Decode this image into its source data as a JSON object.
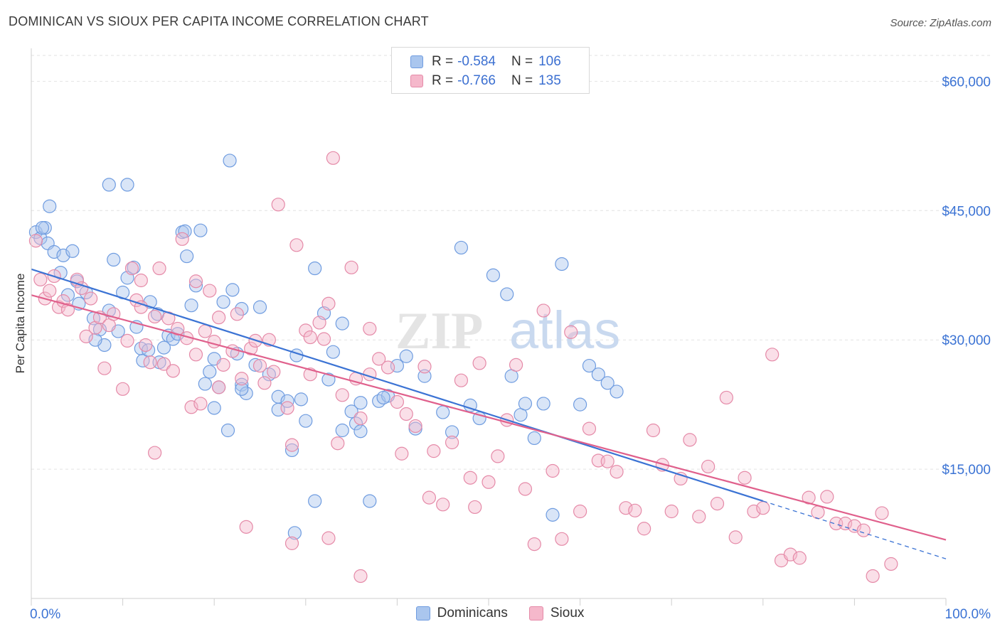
{
  "title": "DOMINICAN VS SIOUX PER CAPITA INCOME CORRELATION CHART",
  "source": "Source: ZipAtlas.com",
  "legend": {
    "rows": [
      {
        "r_label": "R =",
        "r_value": "-0.584",
        "n_label": "N =",
        "n_value": "106",
        "fill": "#aac6ee",
        "stroke": "#6f9ce0"
      },
      {
        "r_label": "R =",
        "r_value": "-0.766",
        "n_label": "N =",
        "n_value": "135",
        "fill": "#f5b8cb",
        "stroke": "#e58aa8"
      }
    ]
  },
  "bottom_legend": [
    "Dominicans",
    "Sioux"
  ],
  "chart_data": {
    "type": "scatter",
    "ylabel": "Per Capita Income",
    "xlim": [
      0,
      100
    ],
    "ylim": [
      0,
      63000
    ],
    "x_tick_labels": [
      "0.0%",
      "100.0%"
    ],
    "y_ticks": [
      15000,
      30000,
      45000,
      60000
    ],
    "y_tick_labels": [
      "$15,000",
      "$30,000",
      "$45,000",
      "$60,000"
    ],
    "grid": true,
    "watermark": "ZIPatlas",
    "series": [
      {
        "name": "Dominicans",
        "color_fill": "#aac6ee",
        "color_stroke": "#6f9ce0",
        "line_color": "#3b73d4",
        "trend": {
          "x0": 0,
          "y0": 38200,
          "x1": 80,
          "y1": 11300,
          "dash_to_x": 100,
          "dash_to_y": 4600
        },
        "points": [
          [
            0.5,
            42500
          ],
          [
            1,
            41800
          ],
          [
            1.5,
            43000
          ],
          [
            2,
            45500
          ],
          [
            1.8,
            41200
          ],
          [
            2.5,
            40200
          ],
          [
            3.2,
            37800
          ],
          [
            3.5,
            39800
          ],
          [
            4.5,
            40300
          ],
          [
            5,
            36800
          ],
          [
            6,
            35500
          ],
          [
            5.2,
            34200
          ],
          [
            6.8,
            32500
          ],
          [
            7.5,
            31200
          ],
          [
            8,
            29400
          ],
          [
            8.5,
            33400
          ],
          [
            9,
            39300
          ],
          [
            10,
            35500
          ],
          [
            10.5,
            37200
          ],
          [
            11.2,
            38400
          ],
          [
            11.5,
            31500
          ],
          [
            12,
            29000
          ],
          [
            12.2,
            27600
          ],
          [
            13,
            34400
          ],
          [
            13.8,
            33000
          ],
          [
            14,
            27400
          ],
          [
            15,
            30500
          ],
          [
            15.5,
            30100
          ],
          [
            16.5,
            42500
          ],
          [
            16.8,
            42600
          ],
          [
            17,
            39700
          ],
          [
            17.5,
            34000
          ],
          [
            18,
            36300
          ],
          [
            18.5,
            42700
          ],
          [
            19,
            24900
          ],
          [
            19.5,
            26300
          ],
          [
            20,
            27800
          ],
          [
            20.5,
            24500
          ],
          [
            21,
            34400
          ],
          [
            22,
            35800
          ],
          [
            22.5,
            28400
          ],
          [
            23,
            24800
          ],
          [
            23.5,
            23800
          ],
          [
            24.5,
            27100
          ],
          [
            25,
            33800
          ],
          [
            26,
            26000
          ],
          [
            27,
            23400
          ],
          [
            28,
            22900
          ],
          [
            29,
            28200
          ],
          [
            29.5,
            23100
          ],
          [
            30,
            20600
          ],
          [
            31,
            38300
          ],
          [
            32,
            33100
          ],
          [
            32.5,
            25400
          ],
          [
            33,
            28600
          ],
          [
            34,
            31900
          ],
          [
            35,
            21700
          ],
          [
            35.5,
            20300
          ],
          [
            36,
            19400
          ],
          [
            38,
            22900
          ],
          [
            39,
            23500
          ],
          [
            40,
            27000
          ],
          [
            41,
            28100
          ],
          [
            42,
            19700
          ],
          [
            43,
            25800
          ],
          [
            45,
            21600
          ],
          [
            46,
            19300
          ],
          [
            47,
            40700
          ],
          [
            48,
            22400
          ],
          [
            49,
            20900
          ],
          [
            50.5,
            37500
          ],
          [
            52,
            35300
          ],
          [
            52.5,
            25800
          ],
          [
            53.5,
            21300
          ],
          [
            54,
            22600
          ],
          [
            55,
            18600
          ],
          [
            56,
            22600
          ],
          [
            57,
            9700
          ],
          [
            58,
            38800
          ],
          [
            60,
            22500
          ],
          [
            61,
            27000
          ],
          [
            62,
            26000
          ],
          [
            63,
            25000
          ],
          [
            64,
            24000
          ],
          [
            4,
            35200
          ],
          [
            7,
            30000
          ],
          [
            9.5,
            31000
          ],
          [
            12.8,
            28800
          ],
          [
            14.5,
            29100
          ],
          [
            16,
            30700
          ],
          [
            20,
            22100
          ],
          [
            21.5,
            19500
          ],
          [
            23,
            24300
          ],
          [
            27,
            21900
          ],
          [
            28.5,
            17200
          ],
          [
            28.8,
            7600
          ],
          [
            31,
            11300
          ],
          [
            34,
            19500
          ],
          [
            36,
            22700
          ],
          [
            37,
            11300
          ],
          [
            38.5,
            23300
          ],
          [
            8.5,
            48000
          ],
          [
            10.5,
            48000
          ],
          [
            21.7,
            50800
          ],
          [
            23,
            33600
          ],
          [
            1.2,
            43000
          ]
        ]
      },
      {
        "name": "Sioux",
        "color_fill": "#f5b8cb",
        "color_stroke": "#e58aa8",
        "line_color": "#e0608c",
        "trend": {
          "x0": 0,
          "y0": 35200,
          "x1": 100,
          "y1": 6800
        },
        "points": [
          [
            0.5,
            41500
          ],
          [
            1,
            37000
          ],
          [
            1.5,
            34800
          ],
          [
            2,
            35700
          ],
          [
            2.5,
            37400
          ],
          [
            3,
            33800
          ],
          [
            3.5,
            34500
          ],
          [
            4,
            33500
          ],
          [
            5,
            37000
          ],
          [
            5.5,
            36000
          ],
          [
            6,
            30400
          ],
          [
            6.5,
            34800
          ],
          [
            7,
            31400
          ],
          [
            7.5,
            32600
          ],
          [
            8,
            26700
          ],
          [
            8.5,
            31700
          ],
          [
            9,
            33000
          ],
          [
            10,
            24300
          ],
          [
            10.5,
            29900
          ],
          [
            11,
            38300
          ],
          [
            11.5,
            34600
          ],
          [
            12,
            36900
          ],
          [
            12.5,
            29400
          ],
          [
            13,
            27400
          ],
          [
            13.5,
            32700
          ],
          [
            14,
            38300
          ],
          [
            14.5,
            27200
          ],
          [
            15,
            32500
          ],
          [
            15.5,
            26400
          ],
          [
            16,
            31300
          ],
          [
            16.5,
            41700
          ],
          [
            17,
            30200
          ],
          [
            17.5,
            22200
          ],
          [
            18,
            36800
          ],
          [
            18.5,
            22600
          ],
          [
            19,
            31000
          ],
          [
            19.5,
            35700
          ],
          [
            20,
            29800
          ],
          [
            20.5,
            24500
          ],
          [
            21,
            27100
          ],
          [
            22,
            28700
          ],
          [
            22.5,
            33000
          ],
          [
            23,
            25500
          ],
          [
            24,
            29000
          ],
          [
            24.5,
            29900
          ],
          [
            25,
            27000
          ],
          [
            25.5,
            25000
          ],
          [
            26,
            30000
          ],
          [
            26.5,
            26300
          ],
          [
            27,
            45700
          ],
          [
            28,
            22100
          ],
          [
            28.5,
            17800
          ],
          [
            29,
            41000
          ],
          [
            30,
            31100
          ],
          [
            30.5,
            26000
          ],
          [
            31.5,
            32000
          ],
          [
            32,
            30100
          ],
          [
            32.5,
            34200
          ],
          [
            33,
            51100
          ],
          [
            33.5,
            18000
          ],
          [
            34,
            23600
          ],
          [
            35,
            38400
          ],
          [
            35.5,
            25500
          ],
          [
            36,
            20900
          ],
          [
            37,
            31300
          ],
          [
            38,
            27800
          ],
          [
            39,
            26800
          ],
          [
            40,
            22800
          ],
          [
            40.5,
            16800
          ],
          [
            41,
            21400
          ],
          [
            42,
            20000
          ],
          [
            43,
            26900
          ],
          [
            43.5,
            11700
          ],
          [
            44,
            17100
          ],
          [
            45,
            10900
          ],
          [
            46,
            18100
          ],
          [
            47,
            25300
          ],
          [
            48,
            14000
          ],
          [
            48.5,
            10600
          ],
          [
            49,
            27300
          ],
          [
            50,
            13500
          ],
          [
            51,
            16500
          ],
          [
            52,
            20700
          ],
          [
            53,
            27100
          ],
          [
            54,
            12700
          ],
          [
            55,
            6300
          ],
          [
            56,
            33400
          ],
          [
            57,
            14800
          ],
          [
            58,
            6900
          ],
          [
            59,
            30900
          ],
          [
            60,
            10100
          ],
          [
            61,
            19700
          ],
          [
            62,
            16000
          ],
          [
            63,
            15900
          ],
          [
            64,
            14700
          ],
          [
            65,
            10500
          ],
          [
            66,
            10200
          ],
          [
            67,
            8100
          ],
          [
            68,
            19500
          ],
          [
            69,
            15500
          ],
          [
            70,
            10100
          ],
          [
            71,
            13900
          ],
          [
            72,
            18400
          ],
          [
            73,
            9500
          ],
          [
            74,
            15300
          ],
          [
            75,
            11000
          ],
          [
            76,
            23300
          ],
          [
            77,
            7100
          ],
          [
            78,
            14000
          ],
          [
            79,
            10100
          ],
          [
            80,
            10500
          ],
          [
            81,
            28300
          ],
          [
            82,
            4400
          ],
          [
            83,
            5100
          ],
          [
            84,
            4700
          ],
          [
            85,
            11700
          ],
          [
            86,
            10000
          ],
          [
            87,
            11800
          ],
          [
            88,
            8700
          ],
          [
            89,
            8700
          ],
          [
            90,
            8400
          ],
          [
            91,
            7900
          ],
          [
            92,
            2600
          ],
          [
            93,
            9900
          ],
          [
            94,
            4000
          ],
          [
            12,
            33800
          ],
          [
            18,
            28300
          ],
          [
            30.5,
            30300
          ],
          [
            37,
            26000
          ],
          [
            36,
            2600
          ],
          [
            28.5,
            6400
          ],
          [
            32.5,
            7000
          ],
          [
            23.5,
            8300
          ],
          [
            13.5,
            16900
          ],
          [
            20.5,
            32600
          ]
        ]
      }
    ]
  }
}
